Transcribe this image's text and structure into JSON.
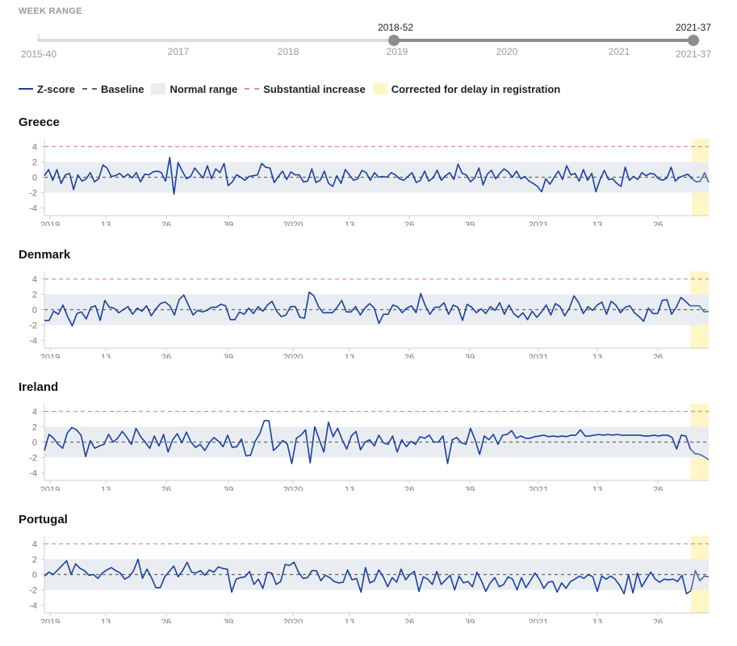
{
  "week_range": {
    "title": "WEEK RANGE",
    "min_label": "2015-40",
    "max_label": "2021-37",
    "selected_start": "2018-52",
    "selected_end": "2021-37",
    "ticks": [
      "2017",
      "2018",
      "2019",
      "2020",
      "2021"
    ],
    "accent": "#8a8d92"
  },
  "legend": {
    "zscore": "Z-score",
    "baseline": "Baseline",
    "normal": "Normal range",
    "substantial": "Substantial increase",
    "corrected": "Corrected for delay in registration"
  },
  "colors": {
    "zscore": "#1a3fa0",
    "corrected": "#4a6aa0",
    "baseline": "#666666",
    "normal": "#e9edf1",
    "substantial": "#e88c8c",
    "corrected_band": "#fff6c6"
  },
  "chart_data": [
    {
      "type": "line",
      "title": "Greece",
      "ylim": [
        -5,
        5
      ],
      "yticks": [
        -4,
        -2,
        0,
        2,
        4
      ],
      "normal_range": [
        -2,
        2
      ],
      "baseline": 0,
      "substantial_increase": 4,
      "x_tick_labels": [
        "2019",
        "13",
        "26",
        "39",
        "2020",
        "13",
        "26",
        "39",
        "2021",
        "13",
        "26"
      ],
      "corrected_weeks": 4,
      "values": [
        0.2,
        1.0,
        -0.4,
        1.0,
        -0.8,
        0.3,
        0.5,
        -1.6,
        0.3,
        -0.5,
        -0.2,
        0.6,
        -0.6,
        -0.2,
        1.6,
        1.2,
        0.1,
        0.2,
        0.5,
        0.0,
        0.4,
        -0.1,
        0.6,
        -0.6,
        0.4,
        0.3,
        0.7,
        0.8,
        0.6,
        -0.5,
        2.6,
        -2.2,
        1.9,
        0.8,
        -0.2,
        0.1,
        1.2,
        0.5,
        -0.1,
        1.5,
        -0.2,
        1.1,
        0.6,
        1.8,
        -1.1,
        -0.6,
        0.3,
        0.0,
        -0.4,
        0.1,
        0.2,
        0.3,
        1.8,
        1.3,
        1.2,
        -0.7,
        0.1,
        0.8,
        -0.3,
        0.7,
        0.3,
        0.3,
        -0.6,
        -0.5,
        1.1,
        -0.7,
        -0.4,
        0.8,
        -0.8,
        -1.2,
        0.2,
        -0.8,
        1.0,
        0.3,
        -0.4,
        -0.2,
        0.9,
        0.6,
        -0.4,
        0.6,
        0.0,
        0.1,
        0.0,
        0.6,
        0.3,
        -0.2,
        -0.4,
        0.1,
        0.6,
        -0.7,
        -0.4,
        0.8,
        -0.5,
        -0.1,
        0.9,
        -0.4,
        0.2,
        0.6,
        -0.3,
        1.7,
        0.5,
        0.3,
        -0.6,
        -0.1,
        1.2,
        -1.0,
        0.4,
        0.9,
        -0.2,
        0.5,
        1.1,
        0.7,
        0.0,
        0.8,
        -0.2,
        0.1,
        -0.5,
        -0.8,
        -1.2,
        -1.9,
        -0.2,
        -0.9,
        0.0,
        0.8,
        -0.3,
        1.5,
        0.3,
        0.5,
        -0.5,
        1.0,
        -0.4,
        0.5,
        -1.9,
        -0.3,
        0.9,
        -0.3,
        -0.2,
        -0.8,
        -1.2,
        1.3,
        -0.4,
        0.1,
        -0.3,
        0.6,
        0.2,
        0.5,
        0.4,
        -0.2,
        -0.4,
        -0.1,
        1.3,
        -0.5,
        0.0,
        0.2,
        0.4,
        -0.2,
        -0.6,
        -0.5,
        0.6,
        -0.7
      ]
    },
    {
      "type": "line",
      "title": "Denmark",
      "ylim": [
        -5,
        5
      ],
      "yticks": [
        -4,
        -2,
        0,
        2,
        4
      ],
      "normal_range": [
        -2,
        2
      ],
      "baseline": 0,
      "substantial_increase": 4,
      "x_tick_labels": [
        "2019",
        "13",
        "26",
        "39",
        "2020",
        "13",
        "26",
        "39",
        "2021",
        "13",
        "26"
      ],
      "corrected_weeks": 4,
      "values": [
        -1.4,
        -1.4,
        -0.2,
        -0.6,
        0.6,
        -0.9,
        -2.1,
        -0.5,
        -0.3,
        -1.2,
        0.3,
        0.5,
        -1.4,
        1.2,
        0.3,
        0.2,
        -0.4,
        0.0,
        0.4,
        -0.6,
        0.2,
        -0.2,
        0.5,
        -0.8,
        0.1,
        0.8,
        1.0,
        0.5,
        -0.7,
        1.3,
        1.9,
        0.6,
        -0.7,
        -0.1,
        -0.3,
        -0.1,
        0.3,
        0.3,
        0.7,
        0.5,
        -1.3,
        -1.3,
        -0.3,
        -0.6,
        0.2,
        -0.5,
        0.4,
        -0.2,
        0.6,
        1.1,
        -0.2,
        -0.9,
        -0.7,
        0.4,
        0.4,
        -1.0,
        -1.1,
        2.3,
        1.8,
        0.4,
        -0.4,
        -0.4,
        -0.4,
        0.3,
        1.2,
        -0.3,
        -0.3,
        0.4,
        -0.7,
        0.2,
        0.8,
        0.2,
        -1.8,
        -0.6,
        -0.6,
        0.6,
        0.4,
        -0.4,
        0.2,
        0.5,
        -0.4,
        2.1,
        0.5,
        -0.6,
        0.3,
        0.3,
        0.9,
        -0.6,
        0.6,
        0.3,
        -1.4,
        0.7,
        0.3,
        -0.4,
        0.1,
        -0.5,
        0.4,
        -0.1,
        0.9,
        -0.6,
        0.6,
        -0.5,
        -1.0,
        -0.4,
        -1.3,
        -0.2,
        -1.0,
        -0.3,
        0.6,
        -0.7,
        0.8,
        0.4,
        -0.8,
        0.2,
        1.8,
        0.9,
        -0.5,
        0.4,
        -0.1,
        0.6,
        1.0,
        -0.6,
        1.1,
        0.6,
        -0.4,
        0.3,
        0.5,
        -0.4,
        -0.9,
        -1.5,
        0.2,
        -0.5,
        -0.5,
        1.2,
        1.3,
        -0.6,
        0.3,
        1.6,
        1.1,
        0.5,
        0.5,
        0.5,
        -0.3,
        -0.2
      ]
    },
    {
      "type": "line",
      "title": "Ireland",
      "ylim": [
        -5,
        5
      ],
      "yticks": [
        -4,
        -2,
        0,
        2,
        4
      ],
      "normal_range": [
        -2,
        2
      ],
      "baseline": 0,
      "substantial_increase": 4,
      "x_tick_labels": [
        "2019",
        "13",
        "26",
        "39",
        "2020",
        "13",
        "26",
        "39",
        "2021",
        "13",
        "26"
      ],
      "corrected_weeks": 4,
      "values": [
        -1.1,
        1.0,
        0.5,
        -0.3,
        -0.8,
        1.2,
        1.9,
        1.6,
        0.9,
        -1.9,
        0.2,
        -0.8,
        -0.5,
        -0.3,
        1.0,
        0.0,
        0.5,
        1.4,
        0.6,
        -0.3,
        1.8,
        0.7,
        0.0,
        -0.8,
        0.8,
        -0.5,
        1.0,
        -1.3,
        0.3,
        1.1,
        -0.1,
        1.3,
        0.0,
        -0.7,
        -0.3,
        -1.1,
        -0.1,
        0.6,
        0.1,
        -0.6,
        0.9,
        -0.7,
        -0.6,
        0.4,
        -1.8,
        -1.7,
        0.1,
        1.1,
        2.8,
        2.8,
        -1.1,
        -0.5,
        0.2,
        -0.2,
        -2.8,
        0.5,
        0.9,
        1.6,
        -2.7,
        2.0,
        0.3,
        -1.3,
        2.6,
        0.7,
        1.8,
        0.3,
        -0.9,
        0.8,
        1.4,
        -1.0,
        0.0,
        0.3,
        -0.5,
        0.9,
        -0.1,
        -0.3,
        0.8,
        -1.3,
        0.3,
        -0.6,
        0.1,
        -0.3,
        0.7,
        0.5,
        0.9,
        0.0,
        0.0,
        0.8,
        -2.8,
        0.3,
        0.6,
        -0.1,
        -0.3,
        1.8,
        0.3,
        -1.6,
        0.8,
        0.3,
        1.0,
        -0.3,
        0.9,
        1.0,
        1.5,
        0.5,
        0.8,
        0.5,
        0.5,
        0.7,
        0.8,
        0.9,
        0.7,
        0.8,
        0.7,
        0.8,
        0.7,
        0.9,
        0.9,
        1.6,
        0.8,
        0.8,
        0.9,
        1.0,
        0.9,
        1.0,
        0.9,
        1.0,
        0.9,
        0.9,
        0.9,
        0.9,
        0.9,
        0.8,
        0.8,
        0.9,
        0.8,
        0.9,
        0.9,
        0.6,
        -0.9,
        0.9,
        0.8,
        -0.9,
        -1.5,
        -1.6,
        -1.9,
        -2.3
      ]
    },
    {
      "type": "line",
      "title": "Portugal",
      "ylim": [
        -5,
        5
      ],
      "yticks": [
        -4,
        -2,
        0,
        2,
        4
      ],
      "normal_range": [
        -2,
        2
      ],
      "baseline": 0,
      "substantial_increase": 4,
      "x_tick_labels": [
        "2019",
        "13",
        "26",
        "39",
        "2020",
        "13",
        "26",
        "39",
        "2021",
        "13",
        "26"
      ],
      "corrected_weeks": 4,
      "values": [
        -0.2,
        0.3,
        0.0,
        0.6,
        1.2,
        1.8,
        0.0,
        1.4,
        0.8,
        0.5,
        -0.1,
        0.0,
        -0.5,
        0.2,
        0.6,
        0.9,
        0.5,
        0.2,
        -0.6,
        -0.3,
        0.5,
        2.0,
        -0.5,
        0.7,
        -0.4,
        -1.7,
        -1.7,
        -0.3,
        0.4,
        1.1,
        -0.3,
        0.5,
        1.6,
        0.3,
        0.2,
        0.5,
        -0.1,
        0.6,
        0.3,
        1.0,
        0.8,
        0.7,
        -2.3,
        -0.6,
        -0.4,
        -0.3,
        0.4,
        -1.3,
        -0.6,
        -1.8,
        0.3,
        0.2,
        -1.3,
        -0.9,
        1.3,
        1.2,
        1.6,
        0.3,
        -0.5,
        -0.4,
        0.5,
        0.5,
        -0.8,
        -0.1,
        -0.4,
        -0.9,
        -1.1,
        -1.0,
        0.6,
        -0.7,
        -0.5,
        -2.3,
        0.9,
        -1.1,
        -0.8,
        0.6,
        -0.3,
        -1.6,
        -0.4,
        -1.0,
        0.7,
        -0.7,
        0.0,
        0.4,
        -2.2,
        -0.3,
        -0.6,
        -1.3,
        0.4,
        -1.3,
        -0.7,
        -0.1,
        -2.0,
        -0.2,
        -1.1,
        -0.9,
        -1.6,
        0.3,
        -0.8,
        -2.2,
        -1.1,
        -0.4,
        -1.6,
        -1.3,
        -0.3,
        -0.6,
        -2.0,
        -0.4,
        -1.7,
        -0.8,
        0.2,
        -0.6,
        -1.8,
        -1.0,
        -0.9,
        -2.3,
        -1.1,
        -1.8,
        -0.9,
        -0.6,
        -0.2,
        -0.5,
        0.0,
        -0.3,
        -2.2,
        -0.2,
        -0.6,
        -0.2,
        -0.6,
        -1.4,
        -2.5,
        0.0,
        -2.4,
        0.2,
        -1.6,
        -0.6,
        0.3,
        -0.6,
        -1.0,
        -0.6,
        -0.7,
        -0.6,
        -0.9,
        -0.1,
        -2.5,
        -2.1,
        0.5,
        -0.8,
        -0.2,
        -0.3
      ]
    }
  ]
}
